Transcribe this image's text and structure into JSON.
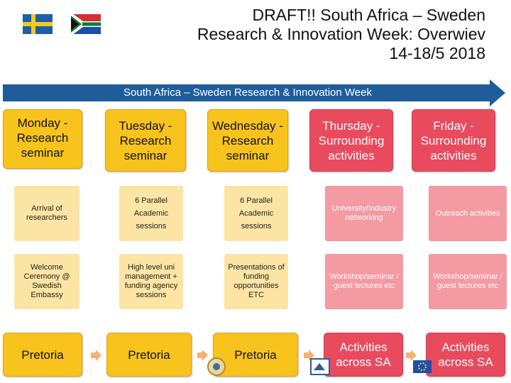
{
  "title": {
    "line1": "DRAFT!! South Africa – Sweden",
    "line2": "Research & Innovation Week: Overwiev",
    "line3": "14-18/5 2018"
  },
  "banner": {
    "label": "South Africa – Sweden Research & Innovation Week"
  },
  "columns": [
    {
      "heading": "Monday -\nResearch seminar",
      "rows": [
        "Arrival of researchers",
        "Welcome Ceremony @ Swedish Embassy"
      ],
      "location": "Pretoria"
    },
    {
      "heading": "Tuesday - Research seminar",
      "rows": [
        "6 Parallel Academic sessions",
        "High level uni management + funding agency sessions"
      ],
      "location": "Pretoria"
    },
    {
      "heading": "Wednesday -Research seminar",
      "rows": [
        "6 Parallel Academic sessions",
        "Presentations of funding opportunities ETC"
      ],
      "location": "Pretoria"
    },
    {
      "heading": "Thursday - Surrounding activities",
      "rows": [
        "University/Industry networking",
        "Workshop/seminar / guest lectures etc"
      ],
      "location": "Activities across SA"
    },
    {
      "heading": "Friday - Surrounding activities",
      "rows": [
        "Outreach activities",
        "Workshop/seminar / guest lectures etc"
      ],
      "location": "Activities across SA"
    }
  ],
  "colors": {
    "banner": "#1f5d9a",
    "yellow": "#f7c31c",
    "red": "#ea4a5e",
    "arrow": "#f6b072"
  },
  "icons": [
    "sweden-flag-icon",
    "south-africa-flag-icon",
    "chevron-right-icon"
  ]
}
